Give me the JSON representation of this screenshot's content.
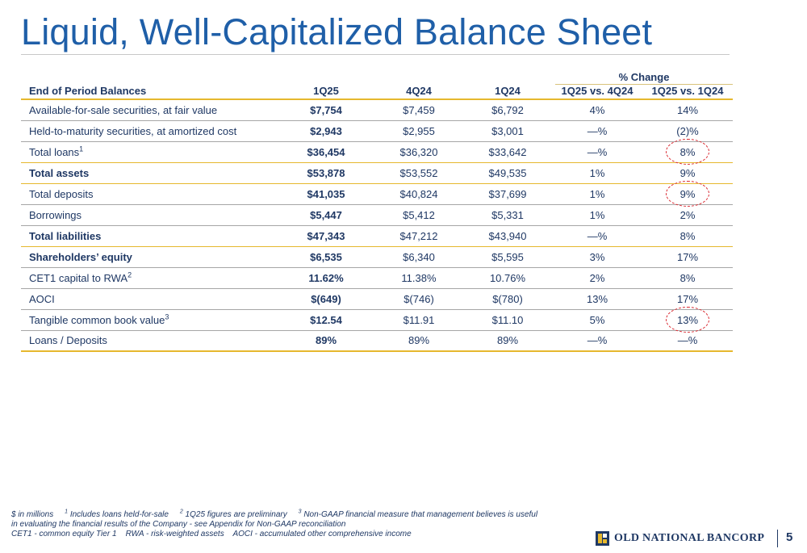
{
  "title": "Liquid, Well-Capitalized Balance Sheet",
  "table": {
    "percent_change_label": "% Change",
    "headers": [
      "End of Period Balances",
      "1Q25",
      "4Q24",
      "1Q24",
      "1Q25 vs. 4Q24",
      "1Q25 vs. 1Q24"
    ],
    "rows": [
      {
        "label": "Available-for-sale securities, at fair value",
        "sup": "",
        "values": [
          "$7,754",
          "$7,459",
          "$6,792",
          "4%",
          "14%"
        ]
      },
      {
        "label": "Held-to-maturity securities, at amortized cost",
        "sup": "",
        "values": [
          "$2,943",
          "$2,955",
          "$3,001",
          "—%",
          "(2)%"
        ]
      },
      {
        "label": "Total loans",
        "sup": "1",
        "values": [
          "$36,454",
          "$36,320",
          "$33,642",
          "—%",
          "8%"
        ]
      },
      {
        "label": "Total assets",
        "sup": "",
        "values": [
          "$53,878",
          "$53,552",
          "$49,535",
          "1%",
          "9%"
        ]
      },
      {
        "label": "Total deposits",
        "sup": "",
        "values": [
          "$41,035",
          "$40,824",
          "$37,699",
          "1%",
          "9%"
        ]
      },
      {
        "label": "Borrowings",
        "sup": "",
        "values": [
          "$5,447",
          "$5,412",
          "$5,331",
          "1%",
          "2%"
        ]
      },
      {
        "label": "Total liabilities",
        "sup": "",
        "values": [
          "$47,343",
          "$47,212",
          "$43,940",
          "—%",
          "8%"
        ]
      },
      {
        "label": "Shareholders’ equity",
        "sup": "",
        "values": [
          "$6,535",
          "$6,340",
          "$5,595",
          "3%",
          "17%"
        ]
      },
      {
        "label": "CET1 capital to RWA",
        "sup": "2",
        "values": [
          "11.62%",
          "11.38%",
          "10.76%",
          "2%",
          "8%"
        ]
      },
      {
        "label": "AOCI",
        "sup": "",
        "values": [
          "$(649)",
          "$(746)",
          "$(780)",
          "13%",
          "17%"
        ]
      },
      {
        "label": "Tangible common book value",
        "sup": "3",
        "values": [
          "$12.54",
          "$11.91",
          "$11.10",
          "5%",
          "13%"
        ]
      },
      {
        "label": "Loans / Deposits",
        "sup": "",
        "values": [
          "89%",
          "89%",
          "89%",
          "—%",
          "—%"
        ]
      }
    ]
  },
  "footnotes": {
    "line1_a": "$ in millions",
    "fn1_num": "1",
    "fn1_text": "Includes loans held-for-sale",
    "fn2_num": "2",
    "fn2_text": "1Q25 figures are preliminary",
    "fn3_num": "3",
    "fn3_text": "Non-GAAP financial measure that management believes is useful",
    "line2": "in evaluating the financial results of the Company - see Appendix for Non-GAAP reconciliation",
    "line3": "CET1 - common equity Tier 1    RWA - risk-weighted assets    AOCI - accumulated other comprehensive income"
  },
  "logo": {
    "text": "OLD NATIONAL BANCORP",
    "icon": "old-national-logo-mark-icon",
    "colors": {
      "navy": "#1f3864",
      "gold": "#e6b82e"
    }
  },
  "page_number": "5",
  "colors": {
    "title": "#1f5fa8",
    "text": "#1f3864",
    "gold_rule": "#e6b82e",
    "circle": "#d9262e"
  }
}
